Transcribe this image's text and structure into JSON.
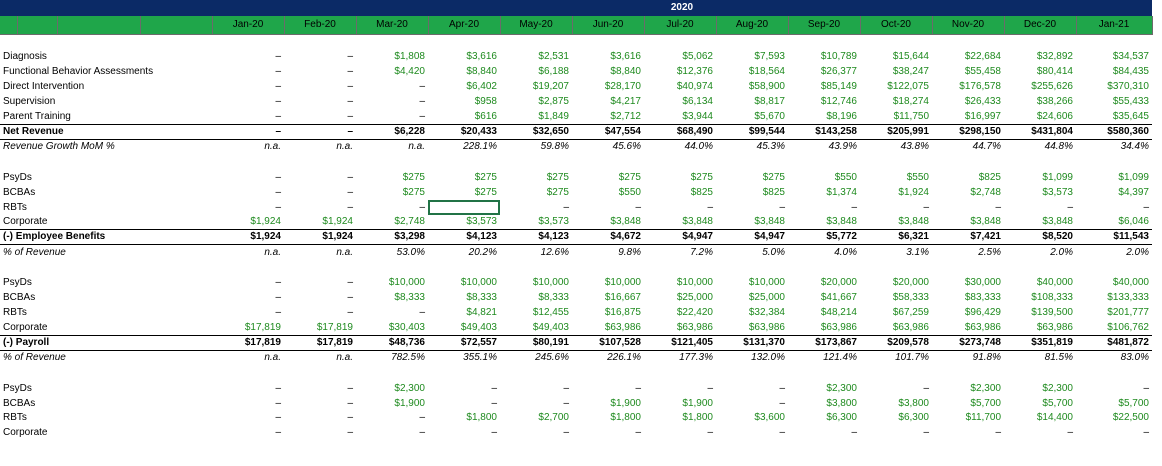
{
  "sheet": {
    "year_label": "2020",
    "months": [
      "Jan-20",
      "Feb-20",
      "Mar-20",
      "Apr-20",
      "May-20",
      "Jun-20",
      "Jul-20",
      "Aug-20",
      "Sep-20",
      "Oct-20",
      "Nov-20",
      "Dec-20",
      "Jan-21"
    ],
    "rows": [
      {
        "type": "gap"
      },
      {
        "label": "Diagnosis",
        "style": "normal",
        "values": [
          "–",
          "–",
          "$1,808",
          "$3,616",
          "$2,531",
          "$3,616",
          "$5,062",
          "$7,593",
          "$10,789",
          "$15,644",
          "$22,684",
          "$32,892",
          "$34,537"
        ]
      },
      {
        "label": "Functional Behavior Assessments",
        "style": "normal",
        "values": [
          "–",
          "–",
          "$4,420",
          "$8,840",
          "$6,188",
          "$8,840",
          "$12,376",
          "$18,564",
          "$26,377",
          "$38,247",
          "$55,458",
          "$80,414",
          "$84,435"
        ]
      },
      {
        "label": "Direct Intervention",
        "style": "normal",
        "values": [
          "–",
          "–",
          "–",
          "$6,402",
          "$19,207",
          "$28,170",
          "$40,974",
          "$58,900",
          "$85,149",
          "$122,075",
          "$176,578",
          "$255,626",
          "$370,310"
        ]
      },
      {
        "label": "Supervision",
        "style": "normal",
        "values": [
          "–",
          "–",
          "–",
          "$958",
          "$2,875",
          "$4,217",
          "$6,134",
          "$8,817",
          "$12,746",
          "$18,274",
          "$26,433",
          "$38,266",
          "$55,433"
        ]
      },
      {
        "label": "Parent Training",
        "style": "normal",
        "values": [
          "–",
          "–",
          "–",
          "$616",
          "$1,849",
          "$2,712",
          "$3,944",
          "$5,670",
          "$8,196",
          "$11,750",
          "$16,997",
          "$24,606",
          "$35,645"
        ]
      },
      {
        "label": "Net Revenue",
        "style": "total",
        "values": [
          "–",
          "–",
          "$6,228",
          "$20,433",
          "$32,650",
          "$47,554",
          "$68,490",
          "$99,544",
          "$143,258",
          "$205,991",
          "$298,150",
          "$431,804",
          "$580,360"
        ]
      },
      {
        "label": "Revenue Growth MoM %",
        "style": "pct",
        "values": [
          "n.a.",
          "n.a.",
          "n.a.",
          "228.1%",
          "59.8%",
          "45.6%",
          "44.0%",
          "45.3%",
          "43.9%",
          "43.8%",
          "44.7%",
          "44.8%",
          "34.4%"
        ]
      },
      {
        "type": "gap"
      },
      {
        "label": "PsyDs",
        "style": "normal",
        "values": [
          "–",
          "–",
          "$275",
          "$275",
          "$275",
          "$275",
          "$275",
          "$275",
          "$550",
          "$550",
          "$825",
          "$1,099",
          "$1,099"
        ]
      },
      {
        "label": "BCBAs",
        "style": "normal",
        "values": [
          "–",
          "–",
          "$275",
          "$275",
          "$275",
          "$550",
          "$825",
          "$825",
          "$1,374",
          "$1,924",
          "$2,748",
          "$3,573",
          "$4,397"
        ]
      },
      {
        "label": "RBTs",
        "style": "normal",
        "selected": 3,
        "values": [
          "–",
          "–",
          "–",
          "",
          "–",
          "–",
          "–",
          "–",
          "–",
          "–",
          "–",
          "–",
          "–"
        ]
      },
      {
        "label": "Corporate",
        "style": "normal",
        "values": [
          "$1,924",
          "$1,924",
          "$2,748",
          "$3,573",
          "$3,573",
          "$3,848",
          "$3,848",
          "$3,848",
          "$3,848",
          "$3,848",
          "$3,848",
          "$3,848",
          "$6,046"
        ]
      },
      {
        "label": "(-) Employee Benefits",
        "style": "total",
        "values": [
          "$1,924",
          "$1,924",
          "$3,298",
          "$4,123",
          "$4,123",
          "$4,672",
          "$4,947",
          "$4,947",
          "$5,772",
          "$6,321",
          "$7,421",
          "$8,520",
          "$11,543"
        ]
      },
      {
        "label": "% of Revenue",
        "style": "pct",
        "values": [
          "n.a.",
          "n.a.",
          "53.0%",
          "20.2%",
          "12.6%",
          "9.8%",
          "7.2%",
          "5.0%",
          "4.0%",
          "3.1%",
          "2.5%",
          "2.0%",
          "2.0%"
        ]
      },
      {
        "type": "gap"
      },
      {
        "label": "PsyDs",
        "style": "normal",
        "values": [
          "–",
          "–",
          "$10,000",
          "$10,000",
          "$10,000",
          "$10,000",
          "$10,000",
          "$10,000",
          "$20,000",
          "$20,000",
          "$30,000",
          "$40,000",
          "$40,000"
        ]
      },
      {
        "label": "BCBAs",
        "style": "normal",
        "values": [
          "–",
          "–",
          "$8,333",
          "$8,333",
          "$8,333",
          "$16,667",
          "$25,000",
          "$25,000",
          "$41,667",
          "$58,333",
          "$83,333",
          "$108,333",
          "$133,333"
        ]
      },
      {
        "label": "RBTs",
        "style": "normal",
        "values": [
          "–",
          "–",
          "–",
          "$4,821",
          "$12,455",
          "$16,875",
          "$22,420",
          "$32,384",
          "$48,214",
          "$67,259",
          "$96,429",
          "$139,500",
          "$201,777"
        ]
      },
      {
        "label": "Corporate",
        "style": "normal",
        "values": [
          "$17,819",
          "$17,819",
          "$30,403",
          "$49,403",
          "$49,403",
          "$63,986",
          "$63,986",
          "$63,986",
          "$63,986",
          "$63,986",
          "$63,986",
          "$63,986",
          "$106,762"
        ]
      },
      {
        "label": "(-) Payroll",
        "style": "total",
        "values": [
          "$17,819",
          "$17,819",
          "$48,736",
          "$72,557",
          "$80,191",
          "$107,528",
          "$121,405",
          "$131,370",
          "$173,867",
          "$209,578",
          "$273,748",
          "$351,819",
          "$481,872"
        ]
      },
      {
        "label": "% of Revenue",
        "style": "pct",
        "values": [
          "n.a.",
          "n.a.",
          "782.5%",
          "355.1%",
          "245.6%",
          "226.1%",
          "177.3%",
          "132.0%",
          "121.4%",
          "101.7%",
          "91.8%",
          "81.5%",
          "83.0%"
        ]
      },
      {
        "type": "gap"
      },
      {
        "label": "PsyDs",
        "style": "normal",
        "values": [
          "–",
          "–",
          "$2,300",
          "–",
          "–",
          "–",
          "–",
          "–",
          "$2,300",
          "–",
          "$2,300",
          "$2,300",
          "–"
        ]
      },
      {
        "label": "BCBAs",
        "style": "normal",
        "values": [
          "–",
          "–",
          "$1,900",
          "–",
          "–",
          "$1,900",
          "$1,900",
          "–",
          "$3,800",
          "$3,800",
          "$5,700",
          "$5,700",
          "$5,700"
        ]
      },
      {
        "label": "RBTs",
        "style": "normal",
        "values": [
          "–",
          "–",
          "–",
          "$1,800",
          "$2,700",
          "$1,800",
          "$1,800",
          "$3,600",
          "$6,300",
          "$6,300",
          "$11,700",
          "$14,400",
          "$22,500"
        ]
      },
      {
        "label": "Corporate",
        "style": "normal",
        "values": [
          "–",
          "–",
          "–",
          "–",
          "–",
          "–",
          "–",
          "–",
          "–",
          "–",
          "–",
          "–",
          "–"
        ]
      }
    ]
  },
  "colors": {
    "header_navy": "#0b2a66",
    "header_green": "#1fa64a",
    "input_green": "#1e8a1e",
    "selection": "#217346"
  }
}
